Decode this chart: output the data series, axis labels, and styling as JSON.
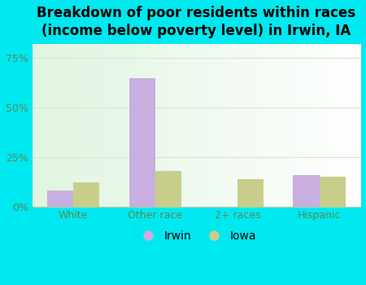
{
  "categories": [
    "White",
    "Other race",
    "2+ races",
    "Hispanic"
  ],
  "irwin_values": [
    8.0,
    65.0,
    0.0,
    16.0
  ],
  "iowa_values": [
    12.0,
    18.0,
    14.0,
    15.0
  ],
  "irwin_color": "#c9aee0",
  "iowa_color": "#c8ce8a",
  "title": "Breakdown of poor residents within races\n(income below poverty level) in Irwin, IA",
  "title_fontsize": 12,
  "yticks": [
    0,
    25,
    50,
    75
  ],
  "ylim": [
    0,
    82
  ],
  "outer_background": "#00e8f0",
  "legend_labels": [
    "Irwin",
    "Iowa"
  ],
  "bar_width": 0.32,
  "grid_color": "#d0e8d0",
  "tick_color": "#558855",
  "label_color": "#558855"
}
